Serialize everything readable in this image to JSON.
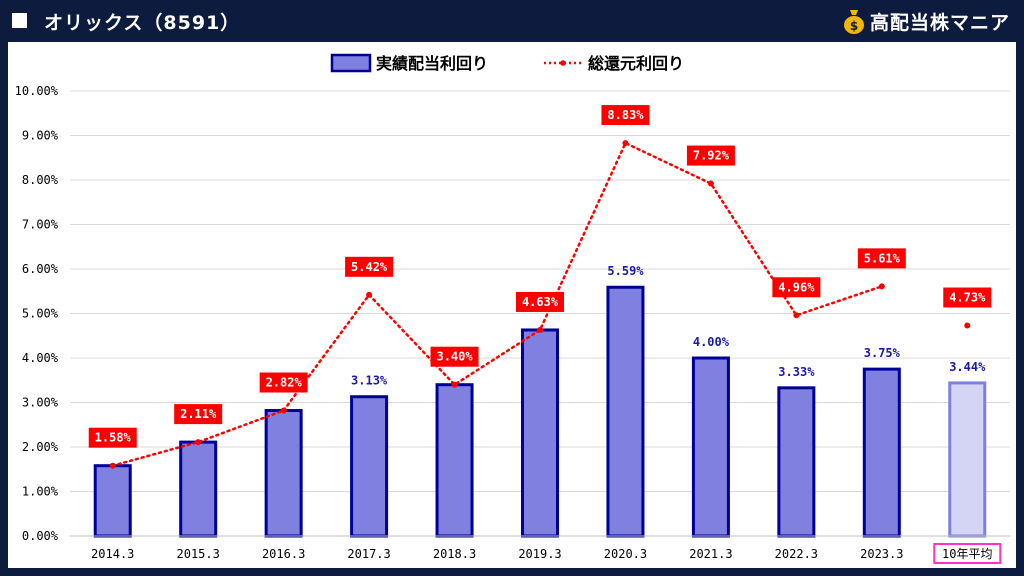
{
  "header": {
    "title": "オリックス（8591）",
    "brand": "高配当株マニア"
  },
  "colors": {
    "background": "#0d1b3e",
    "bar_fill": "#8080e0",
    "bar_stroke": "#000099",
    "avg_bar_fill": "#d4d4f4",
    "avg_bar_stroke": "#8080e0",
    "line": "#ff0000",
    "label_bg": "#ff0000",
    "avg_label_border": "#ff33cc"
  },
  "chart_data": {
    "type": "bar",
    "categories": [
      "2014.3",
      "2015.3",
      "2016.3",
      "2017.3",
      "2018.3",
      "2019.3",
      "2020.3",
      "2021.3",
      "2022.3",
      "2023.3",
      "10年平均"
    ],
    "series": [
      {
        "name": "実績配当利回り",
        "type": "bar",
        "values": [
          1.58,
          2.11,
          2.82,
          3.13,
          3.4,
          4.63,
          5.59,
          4.0,
          3.33,
          3.75,
          3.44
        ],
        "labels": [
          null,
          null,
          null,
          "3.13%",
          null,
          null,
          "5.59%",
          "4.00%",
          "3.33%",
          "3.75%",
          "3.44%"
        ]
      },
      {
        "name": "総還元利回り",
        "type": "line",
        "values": [
          1.58,
          2.11,
          2.82,
          5.42,
          3.4,
          4.63,
          8.83,
          7.92,
          4.96,
          5.61,
          4.73
        ],
        "labels": [
          "1.58%",
          "2.11%",
          "2.82%",
          "5.42%",
          "3.40%",
          "4.63%",
          "8.83%",
          "7.92%",
          "4.96%",
          "5.61%",
          "4.73%"
        ]
      }
    ],
    "ylim": [
      0,
      10
    ],
    "yticks": [
      "0.00%",
      "1.00%",
      "2.00%",
      "3.00%",
      "4.00%",
      "5.00%",
      "6.00%",
      "7.00%",
      "8.00%",
      "9.00%",
      "10.00%"
    ],
    "grid": true,
    "legend": "top-center"
  }
}
